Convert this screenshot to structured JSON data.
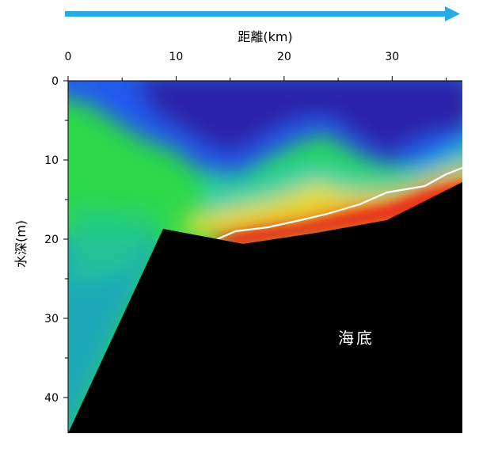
{
  "chart_data": {
    "type": "heatmap",
    "title": "",
    "xlabel": "距離(km)",
    "ylabel": "水深(m)",
    "x_axis_position": "top",
    "y_axis_inverted": true,
    "xlim": [
      0,
      36.5
    ],
    "ylim": [
      0,
      44.5
    ],
    "x_ticks": [
      0,
      10,
      20,
      30
    ],
    "y_ticks": [
      0,
      10,
      20,
      30,
      40
    ],
    "direction_arrow": {
      "from_km": 0,
      "to_km": 36.5,
      "color": "#29ABE2"
    },
    "colorscale": [
      "#2020A0",
      "#2060F0",
      "#20C8E0",
      "#30E040",
      "#E8E020",
      "#F08020",
      "#E02010"
    ],
    "seafloor": {
      "label": "海底",
      "color": "#000000",
      "profile": [
        {
          "x": 0,
          "y": 44.5
        },
        {
          "x": 8.8,
          "y": 18.7
        },
        {
          "x": 16.2,
          "y": 20.6
        },
        {
          "x": 23,
          "y": 19.2
        },
        {
          "x": 29.5,
          "y": 17.6
        },
        {
          "x": 36.5,
          "y": 12.8
        }
      ]
    },
    "isoline": {
      "color": "#ffffff",
      "points": [
        {
          "x": 13.8,
          "y": 20.0
        },
        {
          "x": 15.5,
          "y": 19.0
        },
        {
          "x": 18.5,
          "y": 18.5
        },
        {
          "x": 21.5,
          "y": 17.6
        },
        {
          "x": 24.0,
          "y": 16.8
        },
        {
          "x": 27.0,
          "y": 15.6
        },
        {
          "x": 29.5,
          "y": 14.1
        },
        {
          "x": 33.0,
          "y": 13.3
        },
        {
          "x": 35.0,
          "y": 11.8
        },
        {
          "x": 36.5,
          "y": 11.0
        }
      ]
    }
  }
}
